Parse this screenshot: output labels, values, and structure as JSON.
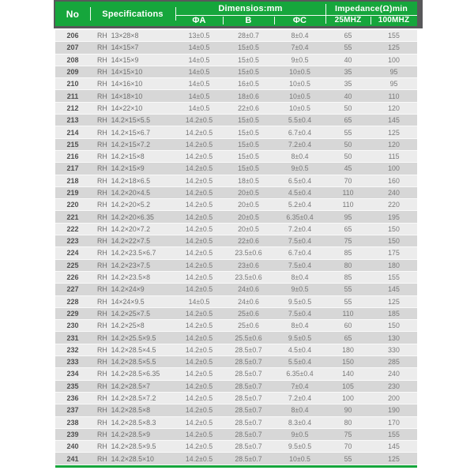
{
  "table": {
    "header": {
      "no": "No",
      "specifications": "Specifications",
      "dimensions_group": "Dimensios:mm",
      "impedance_group": "Impedance(Ω)min",
      "phi_a": "ΦA",
      "b": "B",
      "phi_c": "ΦC",
      "mhz25": "25MHZ",
      "mhz100": "100MHZ"
    },
    "rows": [
      [
        "206",
        "RH  13×28×8",
        "13±0.5",
        "28±0.7",
        "8±0.4",
        "65",
        "155"
      ],
      [
        "207",
        "RH  14×15×7",
        "14±0.5",
        "15±0.5",
        "7±0.4",
        "55",
        "125"
      ],
      [
        "208",
        "RH  14×15×9",
        "14±0.5",
        "15±0.5",
        "9±0.5",
        "40",
        "100"
      ],
      [
        "209",
        "RH  14×15×10",
        "14±0.5",
        "15±0.5",
        "10±0.5",
        "35",
        "95"
      ],
      [
        "210",
        "RH  14×16×10",
        "14±0.5",
        "16±0.5",
        "10±0.5",
        "35",
        "95"
      ],
      [
        "211",
        "RH  14×18×10",
        "14±0.5",
        "18±0.6",
        "10±0.5",
        "40",
        "110"
      ],
      [
        "212",
        "RH  14×22×10",
        "14±0.5",
        "22±0.6",
        "10±0.5",
        "50",
        "120"
      ],
      [
        "213",
        "RH  14.2×15×5.5",
        "14.2±0.5",
        "15±0.5",
        "5.5±0.4",
        "65",
        "145"
      ],
      [
        "214",
        "RH  14.2×15×6.7",
        "14.2±0.5",
        "15±0.5",
        "6.7±0.4",
        "55",
        "125"
      ],
      [
        "215",
        "RH  14.2×15×7.2",
        "14.2±0.5",
        "15±0.5",
        "7.2±0.4",
        "50",
        "120"
      ],
      [
        "216",
        "RH  14.2×15×8",
        "14.2±0.5",
        "15±0.5",
        "8±0.4",
        "50",
        "115"
      ],
      [
        "217",
        "RH  14.2×15×9",
        "14.2±0.5",
        "15±0.5",
        "9±0.5",
        "45",
        "100"
      ],
      [
        "218",
        "RH  14.2×18×6.5",
        "14.2±0.5",
        "18±0.5",
        "6.5±0.4",
        "70",
        "160"
      ],
      [
        "219",
        "RH  14.2×20×4.5",
        "14.2±0.5",
        "20±0.5",
        "4.5±0.4",
        "110",
        "240"
      ],
      [
        "220",
        "RH  14.2×20×5.2",
        "14.2±0.5",
        "20±0.5",
        "5.2±0.4",
        "110",
        "220"
      ],
      [
        "221",
        "RH  14.2×20×6.35",
        "14.2±0.5",
        "20±0.5",
        "6.35±0.4",
        "95",
        "195"
      ],
      [
        "222",
        "RH  14.2×20×7.2",
        "14.2±0.5",
        "20±0.5",
        "7.2±0.4",
        "65",
        "150"
      ],
      [
        "223",
        "RH  14.2×22×7.5",
        "14.2±0.5",
        "22±0.6",
        "7.5±0.4",
        "75",
        "150"
      ],
      [
        "224",
        "RH  14.2×23.5×6.7",
        "14.2±0.5",
        "23.5±0.6",
        "6.7±0.4",
        "85",
        "175"
      ],
      [
        "225",
        "RH  14.2×23×7.5",
        "14.2±0.5",
        "23±0.6",
        "7.5±0.4",
        "80",
        "180"
      ],
      [
        "226",
        "RH  14.2×23.5×8",
        "14.2±0.5",
        "23.5±0.6",
        "8±0.4",
        "85",
        "155"
      ],
      [
        "227",
        "RH  14.2×24×9",
        "14.2±0.5",
        "24±0.6",
        "9±0.5",
        "55",
        "145"
      ],
      [
        "228",
        "RH  14×24×9.5",
        "14±0.5",
        "24±0.6",
        "9.5±0.5",
        "55",
        "125"
      ],
      [
        "229",
        "RH  14.2×25×7.5",
        "14.2±0.5",
        "25±0.6",
        "7.5±0.4",
        "110",
        "185"
      ],
      [
        "230",
        "RH  14.2×25×8",
        "14.2±0.5",
        "25±0.6",
        "8±0.4",
        "60",
        "150"
      ],
      [
        "231",
        "RH  14.2×25.5×9.5",
        "14.2±0.5",
        "25.5±0.6",
        "9.5±0.5",
        "65",
        "130"
      ],
      [
        "232",
        "RH  14.2×28.5×4.5",
        "14.2±0.5",
        "28.5±0.7",
        "4.5±0.4",
        "180",
        "330"
      ],
      [
        "233",
        "RH  14.2×28.5×5.5",
        "14.2±0.5",
        "28.5±0.7",
        "5.5±0.4",
        "150",
        "285"
      ],
      [
        "234",
        "RH  14.2×28.5×6.35",
        "14.2±0.5",
        "28.5±0.7",
        "6.35±0.4",
        "140",
        "240"
      ],
      [
        "235",
        "RH  14.2×28.5×7",
        "14.2±0.5",
        "28.5±0.7",
        "7±0.4",
        "105",
        "230"
      ],
      [
        "236",
        "RH  14.2×28.5×7.2",
        "14.2±0.5",
        "28.5±0.7",
        "7.2±0.4",
        "100",
        "200"
      ],
      [
        "237",
        "RH  14.2×28.5×8",
        "14.2±0.5",
        "28.5±0.7",
        "8±0.4",
        "90",
        "190"
      ],
      [
        "238",
        "RH  14.2×28.5×8.3",
        "14.2±0.5",
        "28.5±0.7",
        "8.3±0.4",
        "80",
        "170"
      ],
      [
        "239",
        "RH  14.2×28.5×9",
        "14.2±0.5",
        "28.5±0.7",
        "9±0.5",
        "75",
        "155"
      ],
      [
        "240",
        "RH  14.2×28.5×9.5",
        "14.2±0.5",
        "28.5±0.7",
        "9.5±0.5",
        "70",
        "145"
      ],
      [
        "241",
        "RH  14.2×28.5×10",
        "14.2±0.5",
        "28.5±0.7",
        "10±0.5",
        "55",
        "125"
      ]
    ]
  },
  "colors": {
    "green": "#16a63c",
    "dark": "#58585a",
    "row_light": "#ececec",
    "row_dark": "#d7d7d7",
    "row_sep": "#fafafa",
    "text_no": "#4f4f4f",
    "text_val": "#787878"
  }
}
